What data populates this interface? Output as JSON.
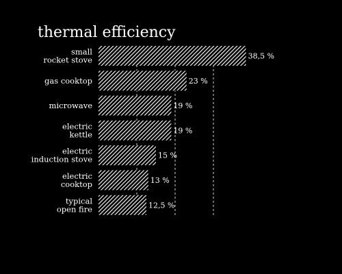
{
  "chart_data": {
    "type": "bar",
    "orientation": "horizontal",
    "title": "thermal efficiency",
    "categories": [
      [
        "small",
        "rocket stove"
      ],
      [
        "gas cooktop"
      ],
      [
        "microwave"
      ],
      [
        "electric",
        "kettle"
      ],
      [
        "electric",
        "induction stove"
      ],
      [
        "electric",
        "cooktop"
      ],
      [
        "typical",
        "open fire"
      ]
    ],
    "values": [
      38.5,
      23,
      19,
      19,
      15,
      13,
      12.5
    ],
    "value_labels": [
      "38,5 %",
      "23 %",
      "19 %",
      "19 %",
      "15 %",
      "13 %",
      "12,5 %"
    ],
    "xlim": [
      0,
      40
    ],
    "gridlines": [
      10,
      20,
      30
    ],
    "grid": true,
    "bar_fill": "hatched",
    "colors": {
      "background": "#000000",
      "bar": "#ffffff",
      "text": "#ffffff"
    }
  }
}
